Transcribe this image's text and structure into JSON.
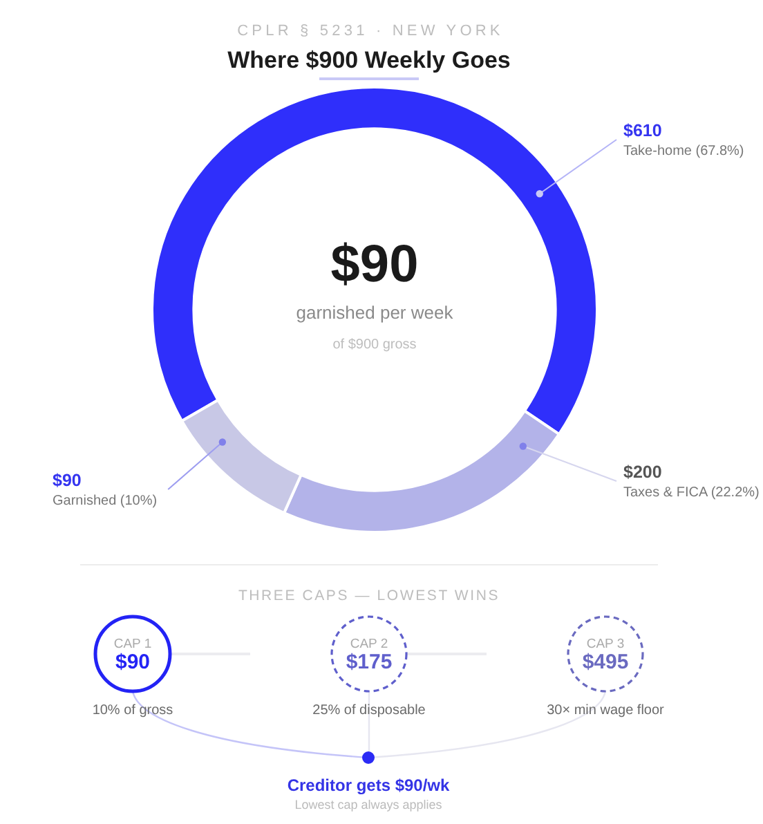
{
  "chart_data": [
    {
      "type": "donut",
      "subtitle": "CPLR § 5231 · NEW YORK",
      "title": "Where $900 Weekly Goes",
      "categories": [
        "Take-home (67.8%)",
        "Taxes & FICA (22.2%)",
        "Garnished (10%)"
      ],
      "values": [
        610,
        200,
        90
      ],
      "value_labels": [
        "$610",
        "$200",
        "$90"
      ],
      "colors": [
        "#2f2ffb",
        "#b3b3e9",
        "#c8c8e6"
      ],
      "annotations": [
        "$90",
        "garnished per week",
        "of $900 gross"
      ]
    },
    {
      "type": "other",
      "title": "THREE CAPS — LOWEST WINS",
      "categories": [
        "CAP 1",
        "CAP 2",
        "CAP 3"
      ],
      "values": [
        90,
        175,
        495
      ],
      "value_labels": [
        "$90",
        "$175",
        "$495"
      ],
      "colors": [
        "#2323f5",
        "#5f5fcc",
        "#6a6ac0"
      ],
      "annotations": [
        "10% of gross",
        "25% of disposable",
        "30× min wage floor",
        "Creditor gets $90/wk",
        "Lowest cap always applies"
      ]
    }
  ]
}
